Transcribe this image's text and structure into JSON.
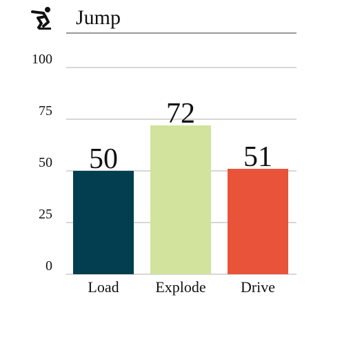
{
  "chart_data": {
    "type": "bar",
    "title": "Jump",
    "categories": [
      "Load",
      "Explode",
      "Drive"
    ],
    "values": [
      50,
      72,
      51
    ],
    "colors": [
      "#023e50",
      "#d1e39c",
      "#e9533a"
    ],
    "ylim": [
      0,
      100
    ],
    "yticks": [
      0,
      25,
      50,
      75,
      100
    ],
    "grid": true
  }
}
